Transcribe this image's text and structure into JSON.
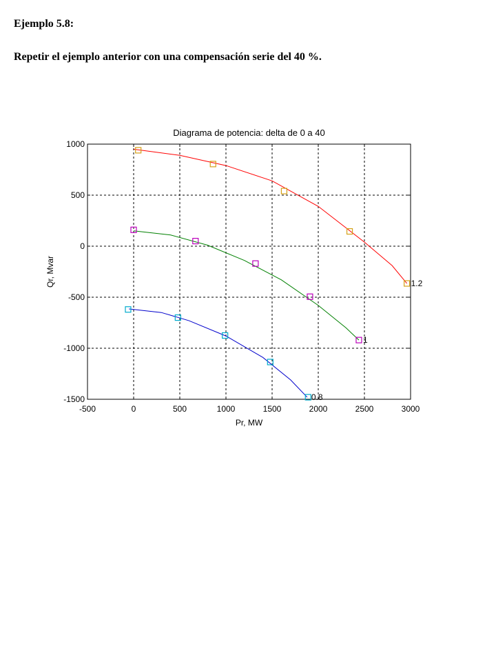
{
  "document": {
    "heading": "Ejemplo 5.8:",
    "statement": "Repetir el ejemplo anterior con una compensación serie del 40 %."
  },
  "chart_data": {
    "type": "line",
    "title": "Diagrama de potencia: delta de 0 a 40",
    "xlabel": "Pr, MW",
    "ylabel": "Qr,  Mvar",
    "xlim": [
      -500,
      3000
    ],
    "ylim": [
      -1500,
      1000
    ],
    "xticks": [
      -500,
      0,
      500,
      1000,
      1500,
      2000,
      2500,
      3000
    ],
    "yticks": [
      -1500,
      -1000,
      -500,
      0,
      500,
      1000
    ],
    "x_tick_labels": [
      "-500",
      "0",
      "500",
      "1000",
      "1500",
      "2000",
      "2500",
      "3000"
    ],
    "y_tick_labels": [
      "-1500",
      "-1000",
      "-500",
      "0",
      "500",
      "1000"
    ],
    "grid": true,
    "series": [
      {
        "name": "1.2",
        "line_color": "#ff0000",
        "marker_color": "#d4a017",
        "points": [
          [
            0,
            950
          ],
          [
            500,
            890
          ],
          [
            1000,
            790
          ],
          [
            1500,
            640
          ],
          [
            2000,
            390
          ],
          [
            2500,
            40
          ],
          [
            2800,
            -190
          ],
          [
            2960,
            -365
          ]
        ],
        "markers": [
          [
            50,
            940
          ],
          [
            860,
            805
          ],
          [
            1630,
            540
          ],
          [
            2340,
            145
          ],
          [
            2960,
            -365
          ]
        ]
      },
      {
        "name": "1",
        "line_color": "#008000",
        "marker_color": "#bb00bb",
        "points": [
          [
            0,
            150
          ],
          [
            400,
            110
          ],
          [
            800,
            10
          ],
          [
            1200,
            -140
          ],
          [
            1600,
            -330
          ],
          [
            2000,
            -580
          ],
          [
            2300,
            -800
          ],
          [
            2440,
            -920
          ]
        ],
        "markers": [
          [
            0,
            160
          ],
          [
            670,
            50
          ],
          [
            1320,
            -170
          ],
          [
            1910,
            -495
          ],
          [
            2440,
            -920
          ]
        ]
      },
      {
        "name": "0.8",
        "line_color": "#0000cc",
        "marker_color": "#00aacc",
        "points": [
          [
            -50,
            -615
          ],
          [
            300,
            -650
          ],
          [
            600,
            -730
          ],
          [
            1000,
            -880
          ],
          [
            1400,
            -1090
          ],
          [
            1700,
            -1310
          ],
          [
            1880,
            -1480
          ]
        ],
        "markers": [
          [
            -60,
            -620
          ],
          [
            480,
            -700
          ],
          [
            990,
            -875
          ],
          [
            1480,
            -1135
          ],
          [
            1890,
            -1480
          ]
        ]
      }
    ]
  }
}
